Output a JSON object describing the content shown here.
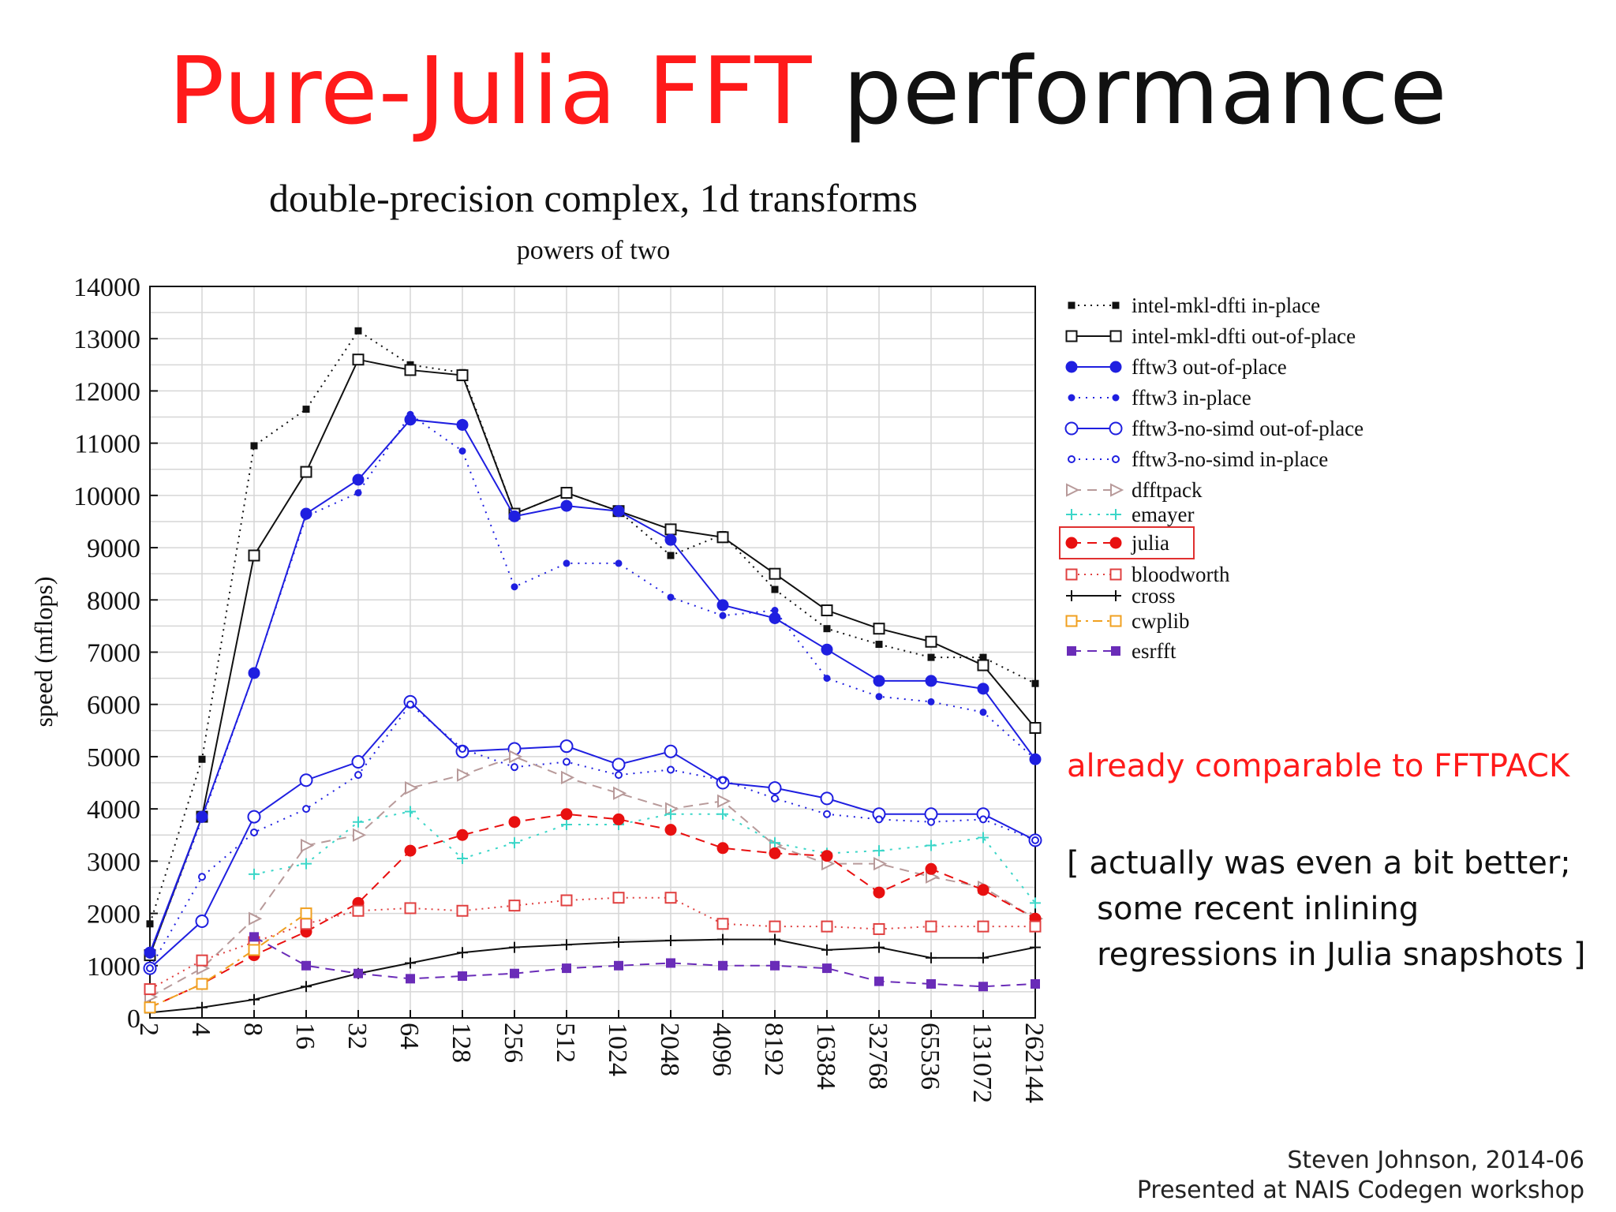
{
  "slide": {
    "title_red": "Pure-Julia FFT",
    "title_black": "performance",
    "callout": "already comparable to FFTPACK",
    "note_lines": [
      "[ actually was even a bit better;",
      "   some recent inlining",
      "   regressions in Julia snapshots ]"
    ],
    "credit_line1": "Steven Johnson, 2014-06",
    "credit_line2": "Presented at NAIS Codegen workshop"
  },
  "chart_data": {
    "type": "line",
    "title": "double-precision complex, 1d transforms",
    "subtitle": "powers of two",
    "ylabel": "speed (mflops)",
    "xlabel": "",
    "ylim": [
      0,
      14000
    ],
    "yticks": [
      0,
      1000,
      2000,
      3000,
      4000,
      5000,
      6000,
      7000,
      8000,
      9000,
      10000,
      11000,
      12000,
      13000,
      14000
    ],
    "grid": true,
    "legend_position": "right",
    "categories": [
      "2",
      "4",
      "8",
      "16",
      "32",
      "64",
      "128",
      "256",
      "512",
      "1024",
      "2048",
      "4096",
      "8192",
      "16384",
      "32768",
      "65536",
      "131072",
      "262144"
    ],
    "series": [
      {
        "name": "intel-mkl-dfti in-place",
        "color": "#111111",
        "dash": "2,6",
        "marker": "filled-square-small",
        "values": [
          1800,
          4950,
          10950,
          11650,
          13150,
          12500,
          12350,
          9650,
          10050,
          9700,
          8850,
          9250,
          8200,
          7450,
          7150,
          6900,
          6900,
          6400
        ]
      },
      {
        "name": "intel-mkl-dfti out-of-place",
        "color": "#111111",
        "dash": "",
        "marker": "open-square",
        "values": [
          1200,
          3850,
          8850,
          10450,
          12600,
          12400,
          12300,
          9650,
          10050,
          9700,
          9350,
          9200,
          8500,
          7800,
          7450,
          7200,
          6750,
          5550
        ]
      },
      {
        "name": "fftw3 out-of-place",
        "color": "#1f1fe0",
        "dash": "",
        "marker": "filled-circle",
        "values": [
          1250,
          3850,
          6600,
          9650,
          10300,
          11450,
          11350,
          9600,
          9800,
          9700,
          9150,
          7900,
          7650,
          7050,
          6450,
          6450,
          6300,
          4950
        ]
      },
      {
        "name": "fftw3 in-place",
        "color": "#1f1fe0",
        "dash": "2,7",
        "marker": "filled-circle-small",
        "values": [
          1200,
          3800,
          6600,
          9600,
          10050,
          11550,
          10850,
          8250,
          8700,
          8700,
          8050,
          7700,
          7800,
          6500,
          6150,
          6050,
          5850,
          4950
        ]
      },
      {
        "name": "fftw3-no-simd out-of-place",
        "color": "#1f1fe0",
        "dash": "",
        "marker": "open-circle",
        "values": [
          950,
          1850,
          3850,
          4550,
          4900,
          6050,
          5100,
          5150,
          5200,
          4850,
          5100,
          4500,
          4400,
          4200,
          3900,
          3900,
          3900,
          3400
        ]
      },
      {
        "name": "fftw3-no-simd in-place",
        "color": "#1f1fe0",
        "dash": "2,7",
        "marker": "open-circle-small",
        "values": [
          950,
          2700,
          3550,
          4000,
          4650,
          6000,
          5150,
          4800,
          4900,
          4650,
          4750,
          4550,
          4200,
          3900,
          3800,
          3750,
          3800,
          3400
        ]
      },
      {
        "name": "dfftpack",
        "color": "#b89a9a",
        "dash": "12,8",
        "marker": "open-triangle",
        "values": [
          400,
          950,
          1900,
          3300,
          3500,
          4400,
          4650,
          5000,
          4600,
          4300,
          4000,
          4150,
          3300,
          2950,
          2950,
          2700,
          2500,
          1900
        ]
      },
      {
        "name": "emayer",
        "color": "#3cd6c8",
        "dash": "3,8",
        "marker": "plus",
        "values": [
          null,
          null,
          2750,
          2950,
          3750,
          3950,
          3050,
          3350,
          3700,
          3700,
          3900,
          3900,
          3350,
          3150,
          3200,
          3300,
          3450,
          2200
        ]
      },
      {
        "name": "julia",
        "color": "#e81010",
        "dash": "12,8",
        "marker": "filled-circle",
        "values": [
          200,
          650,
          1200,
          1650,
          2200,
          3200,
          3500,
          3750,
          3900,
          3800,
          3600,
          3250,
          3150,
          3100,
          2400,
          2850,
          2450,
          1900
        ]
      },
      {
        "name": "bloodworth",
        "color": "#e04040",
        "dash": "2,6",
        "marker": "open-square",
        "values": [
          550,
          1100,
          1450,
          1800,
          2050,
          2100,
          2050,
          2150,
          2250,
          2300,
          2300,
          1800,
          1750,
          1750,
          1700,
          1750,
          1750,
          1750
        ]
      },
      {
        "name": "cross",
        "color": "#111111",
        "dash": "",
        "marker": "plus",
        "values": [
          100,
          200,
          350,
          600,
          850,
          1050,
          1250,
          1350,
          1400,
          1450,
          1480,
          1500,
          1500,
          1300,
          1350,
          1150,
          1150,
          1350
        ]
      },
      {
        "name": "cwplib",
        "color": "#f0a020",
        "dash": "12,6,3,6",
        "marker": "open-square",
        "values": [
          200,
          650,
          1300,
          2000,
          null,
          null,
          null,
          null,
          null,
          null,
          null,
          null,
          null,
          null,
          null,
          null,
          null,
          null
        ]
      },
      {
        "name": "esrfft",
        "color": "#6a2cb8",
        "dash": "12,8",
        "marker": "filled-square",
        "values": [
          null,
          null,
          1550,
          1000,
          850,
          750,
          800,
          850,
          950,
          1000,
          1050,
          1000,
          1000,
          950,
          700,
          650,
          600,
          650
        ]
      }
    ],
    "highlighted_series": "julia"
  }
}
